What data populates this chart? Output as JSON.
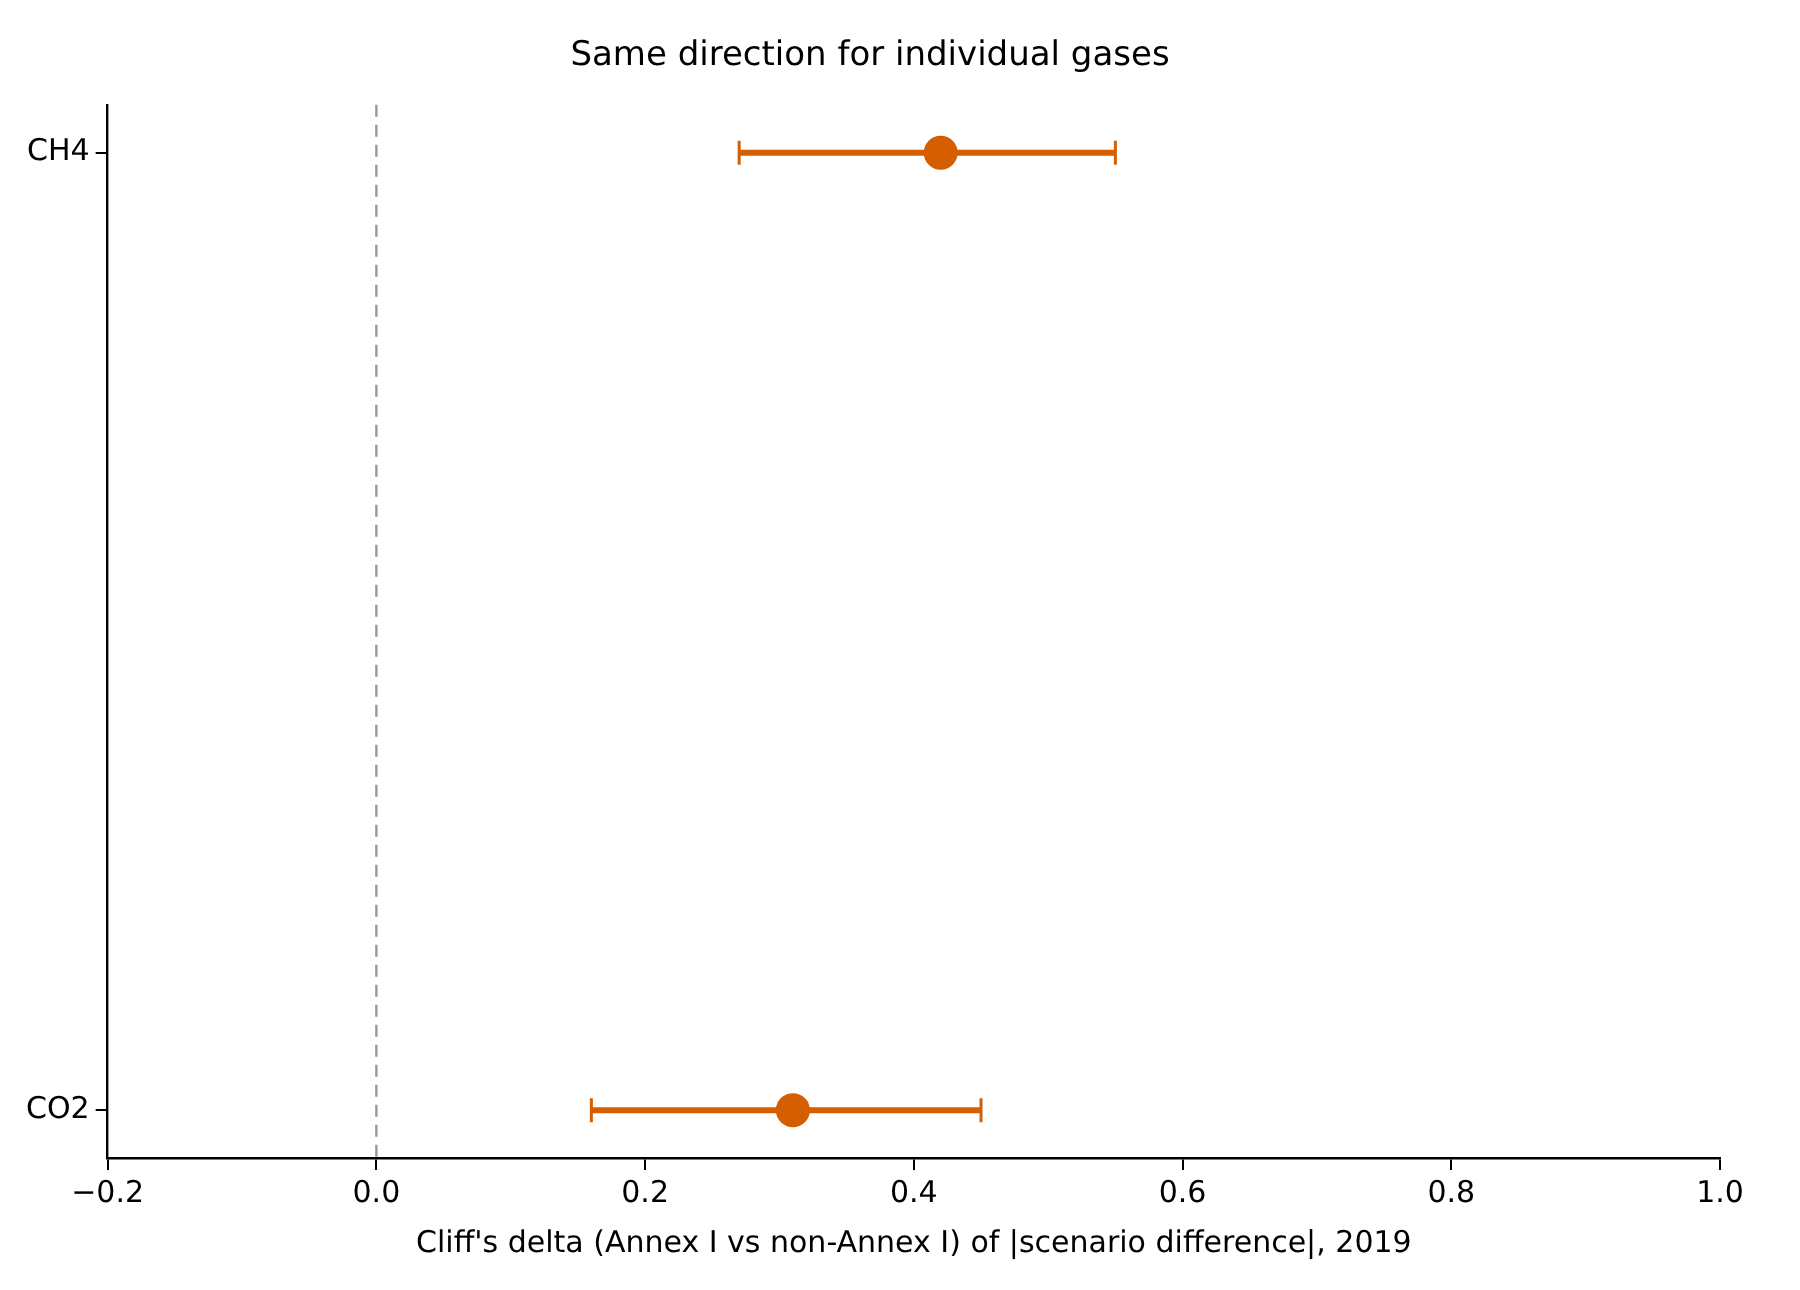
{
  "chart_data": {
    "type": "scatter",
    "orientation": "horizontal",
    "title": "Same direction for individual gases",
    "xlabel": "Cliff's delta (Annex I vs non-Annex I) of |scenario difference|, 2019",
    "categories": [
      "CH4",
      "CO2"
    ],
    "values": [
      0.42,
      0.31
    ],
    "errors": [
      [
        0.27,
        0.55
      ],
      [
        0.16,
        0.45
      ]
    ],
    "color": "#d55e00",
    "xlim": [
      -0.2,
      1.0
    ],
    "xticks": [
      {
        "value": -0.2,
        "label": "−0.2"
      },
      {
        "value": 0,
        "label": "0.0"
      },
      0.2,
      0.4,
      0.6,
      0.8,
      {
        "value": 1.0,
        "label": "1.0"
      }
    ],
    "ref_lines": [
      {
        "axis": "x",
        "value": 0,
        "color": "#999999",
        "line_style": "dashed"
      }
    ],
    "grid": false,
    "legend": false,
    "marker": "circle"
  }
}
